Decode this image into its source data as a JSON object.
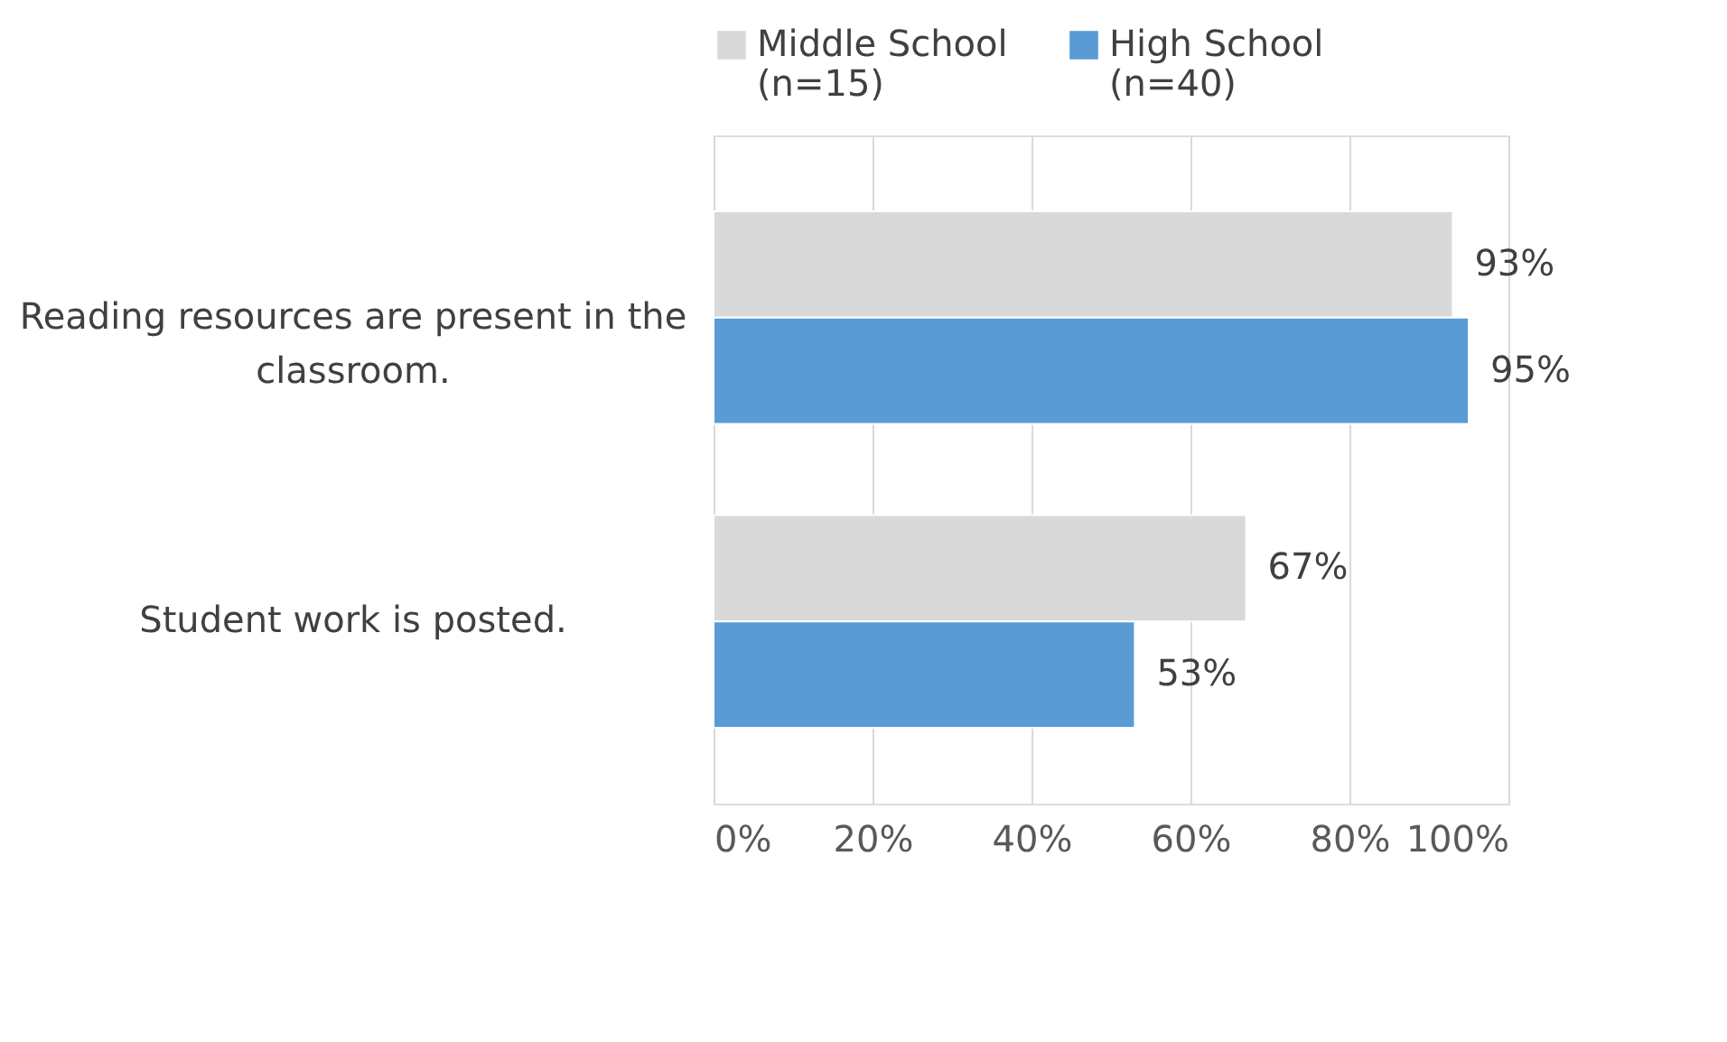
{
  "chart_data": {
    "type": "bar",
    "orientation": "horizontal",
    "categories": [
      "Reading resources are present in the classroom.",
      "Student work is posted."
    ],
    "series": [
      {
        "name": "Middle School (n=15)",
        "color": "#d9d9d9",
        "values": [
          93,
          67
        ],
        "value_labels": [
          "93%",
          "67%"
        ]
      },
      {
        "name": "High School (n=40)",
        "color": "#5b9bd5",
        "values": [
          95,
          53
        ],
        "value_labels": [
          "95%",
          "53%"
        ]
      }
    ],
    "xlim": [
      0,
      100
    ],
    "xticks": [
      {
        "value": 0,
        "label": "0%"
      },
      {
        "value": 20,
        "label": "20%"
      },
      {
        "value": 40,
        "label": "40%"
      },
      {
        "value": 60,
        "label": "60%"
      },
      {
        "value": 80,
        "label": "80%"
      },
      {
        "value": 100,
        "label": "100%"
      }
    ],
    "grid": "x",
    "legend": "top"
  }
}
